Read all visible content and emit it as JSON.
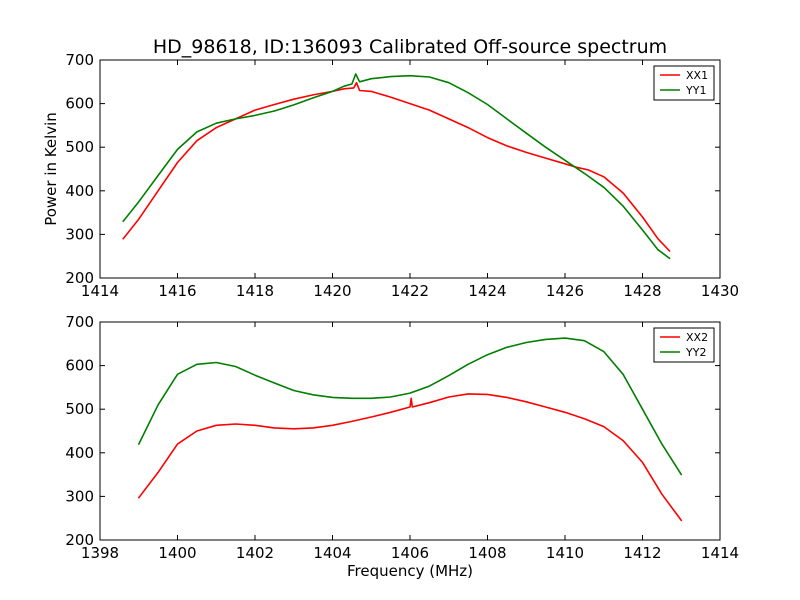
{
  "title": "HD_98618, ID:136093 Calibrated Off-source spectrum",
  "colors": {
    "red": "#ff0000",
    "green": "#007f00"
  },
  "chart_data": [
    {
      "type": "line",
      "title": "HD_98618, ID:136093 Calibrated Off-source spectrum",
      "xlabel": "",
      "ylabel": "Power in Kelvin",
      "xlim": [
        1414,
        1430
      ],
      "ylim": [
        200,
        700
      ],
      "xticks": [
        1414,
        1416,
        1418,
        1420,
        1422,
        1424,
        1426,
        1428,
        1430
      ],
      "yticks": [
        200,
        300,
        400,
        500,
        600,
        700
      ],
      "legend": "top-right",
      "grid": false,
      "series": [
        {
          "name": "XX1",
          "color": "#ff0000",
          "points": [
            [
              1414.6,
              290
            ],
            [
              1415,
              335
            ],
            [
              1415.5,
              400
            ],
            [
              1416,
              465
            ],
            [
              1416.5,
              515
            ],
            [
              1417,
              545
            ],
            [
              1417.5,
              565
            ],
            [
              1418,
              585
            ],
            [
              1418.5,
              598
            ],
            [
              1419,
              610
            ],
            [
              1419.5,
              620
            ],
            [
              1420,
              628
            ],
            [
              1420.3,
              634
            ],
            [
              1420.55,
              636
            ],
            [
              1420.62,
              648
            ],
            [
              1420.7,
              630
            ],
            [
              1421,
              628
            ],
            [
              1421.5,
              615
            ],
            [
              1422,
              600
            ],
            [
              1422.5,
              585
            ],
            [
              1423,
              565
            ],
            [
              1423.5,
              545
            ],
            [
              1424,
              522
            ],
            [
              1424.5,
              503
            ],
            [
              1425,
              488
            ],
            [
              1425.5,
              475
            ],
            [
              1426,
              462
            ],
            [
              1426.3,
              454
            ],
            [
              1426.6,
              448
            ],
            [
              1427,
              432
            ],
            [
              1427.5,
              395
            ],
            [
              1428,
              340
            ],
            [
              1428.4,
              290
            ],
            [
              1428.7,
              262
            ]
          ]
        },
        {
          "name": "YY1",
          "color": "#007f00",
          "points": [
            [
              1414.6,
              330
            ],
            [
              1415,
              375
            ],
            [
              1415.5,
              435
            ],
            [
              1416,
              495
            ],
            [
              1416.5,
              535
            ],
            [
              1417,
              555
            ],
            [
              1417.5,
              565
            ],
            [
              1418,
              573
            ],
            [
              1418.5,
              583
            ],
            [
              1419,
              597
            ],
            [
              1419.5,
              613
            ],
            [
              1420,
              628
            ],
            [
              1420.3,
              640
            ],
            [
              1420.5,
              645
            ],
            [
              1420.6,
              668
            ],
            [
              1420.7,
              650
            ],
            [
              1421,
              657
            ],
            [
              1421.5,
              662
            ],
            [
              1422,
              664
            ],
            [
              1422.5,
              661
            ],
            [
              1423,
              648
            ],
            [
              1423.5,
              625
            ],
            [
              1424,
              598
            ],
            [
              1424.5,
              565
            ],
            [
              1425,
              532
            ],
            [
              1425.5,
              500
            ],
            [
              1426,
              470
            ],
            [
              1426.5,
              440
            ],
            [
              1427,
              408
            ],
            [
              1427.5,
              365
            ],
            [
              1428,
              310
            ],
            [
              1428.4,
              265
            ],
            [
              1428.7,
              245
            ]
          ]
        }
      ]
    },
    {
      "type": "line",
      "title": "",
      "xlabel": "Frequency (MHz)",
      "ylabel": "",
      "xlim": [
        1398,
        1414
      ],
      "ylim": [
        200,
        700
      ],
      "xticks": [
        1398,
        1400,
        1402,
        1404,
        1406,
        1408,
        1410,
        1412,
        1414
      ],
      "yticks": [
        200,
        300,
        400,
        500,
        600,
        700
      ],
      "legend": "top-right",
      "grid": false,
      "series": [
        {
          "name": "XX2",
          "color": "#ff0000",
          "points": [
            [
              1399,
              297
            ],
            [
              1399.5,
              355
            ],
            [
              1400,
              420
            ],
            [
              1400.5,
              450
            ],
            [
              1401,
              463
            ],
            [
              1401.5,
              466
            ],
            [
              1402,
              463
            ],
            [
              1402.5,
              457
            ],
            [
              1403,
              455
            ],
            [
              1403.5,
              457
            ],
            [
              1404,
              463
            ],
            [
              1404.5,
              472
            ],
            [
              1405,
              482
            ],
            [
              1405.5,
              493
            ],
            [
              1406,
              505
            ],
            [
              1406.03,
              525
            ],
            [
              1406.06,
              505
            ],
            [
              1406.5,
              515
            ],
            [
              1407,
              528
            ],
            [
              1407.5,
              535
            ],
            [
              1408,
              534
            ],
            [
              1408.5,
              527
            ],
            [
              1409,
              517
            ],
            [
              1409.5,
              505
            ],
            [
              1410,
              493
            ],
            [
              1410.5,
              478
            ],
            [
              1411,
              460
            ],
            [
              1411.5,
              428
            ],
            [
              1412,
              378
            ],
            [
              1412.5,
              305
            ],
            [
              1413,
              245
            ]
          ]
        },
        {
          "name": "YY2",
          "color": "#007f00",
          "points": [
            [
              1399,
              420
            ],
            [
              1399.5,
              510
            ],
            [
              1400,
              580
            ],
            [
              1400.5,
              603
            ],
            [
              1401,
              607
            ],
            [
              1401.5,
              598
            ],
            [
              1402,
              578
            ],
            [
              1402.5,
              560
            ],
            [
              1403,
              543
            ],
            [
              1403.5,
              533
            ],
            [
              1404,
              527
            ],
            [
              1404.5,
              525
            ],
            [
              1405,
              525
            ],
            [
              1405.5,
              528
            ],
            [
              1406,
              537
            ],
            [
              1406.5,
              553
            ],
            [
              1407,
              577
            ],
            [
              1407.5,
              603
            ],
            [
              1408,
              625
            ],
            [
              1408.5,
              642
            ],
            [
              1409,
              653
            ],
            [
              1409.5,
              660
            ],
            [
              1410,
              663
            ],
            [
              1410.5,
              657
            ],
            [
              1411,
              632
            ],
            [
              1411.5,
              580
            ],
            [
              1412,
              500
            ],
            [
              1412.5,
              420
            ],
            [
              1413,
              350
            ]
          ]
        }
      ]
    }
  ]
}
